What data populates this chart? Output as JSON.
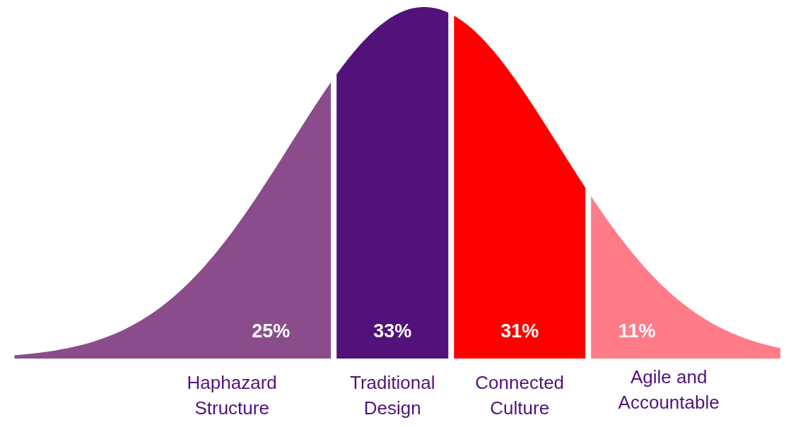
{
  "chart_data": {
    "type": "other",
    "categories": [
      "Haphazard Structure",
      "Traditional Design",
      "Connected Culture",
      "Agile and Accountable"
    ],
    "values": [
      25,
      33,
      31,
      11
    ],
    "value_labels": [
      "25%",
      "33%",
      "31%",
      "11%"
    ],
    "colors": [
      "#8b4c8c",
      "#52127a",
      "#ff0000",
      "#ff7b88"
    ]
  }
}
